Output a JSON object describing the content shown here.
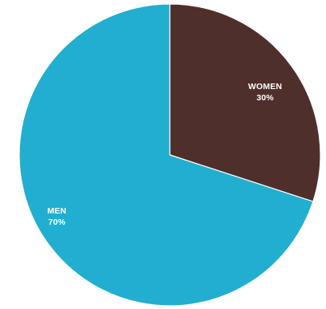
{
  "chart_data": {
    "type": "pie",
    "title": "",
    "start_angle_deg": 0,
    "direction": "clockwise",
    "slices": [
      {
        "label": "WOMEN",
        "value": 30,
        "value_label": "30%",
        "color": "#4f2f2b"
      },
      {
        "label": "MEN",
        "value": 70,
        "value_label": "70%",
        "color": "#22aed0"
      }
    ]
  }
}
